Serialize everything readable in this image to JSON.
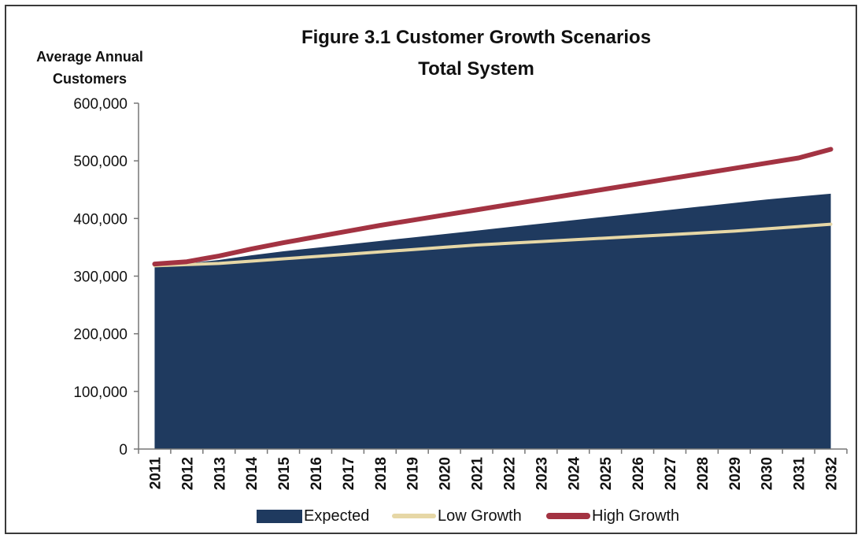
{
  "chart_data": {
    "type": "area",
    "title": "Figure 3.1 Customer Growth Scenarios",
    "subtitle": "Total System",
    "ylabel_line1": "Average Annual",
    "ylabel_line2": "Customers",
    "xlabel": "",
    "categories": [
      "2011",
      "2012",
      "2013",
      "2014",
      "2015",
      "2016",
      "2017",
      "2018",
      "2019",
      "2020",
      "2021",
      "2022",
      "2023",
      "2024",
      "2025",
      "2026",
      "2027",
      "2028",
      "2029",
      "2030",
      "2031",
      "2032"
    ],
    "ylim": [
      0,
      600000
    ],
    "yticks": [
      0,
      100000,
      200000,
      300000,
      400000,
      500000,
      600000
    ],
    "ytick_labels": [
      "0",
      "100,000",
      "200,000",
      "300,000",
      "400,000",
      "500,000",
      "600,000"
    ],
    "grid": false,
    "legend_position": "bottom",
    "series": [
      {
        "name": "Expected",
        "kind": "area",
        "color": "#1f3a5f",
        "values": [
          318000,
          322000,
          328000,
          336000,
          343000,
          349000,
          355000,
          361000,
          367000,
          373000,
          379000,
          385000,
          391000,
          397000,
          403000,
          409000,
          415000,
          421000,
          427000,
          433000,
          438000,
          443000
        ]
      },
      {
        "name": "Low Growth",
        "kind": "line",
        "color": "#e6d7a6",
        "values": [
          318000,
          320000,
          322000,
          326000,
          330000,
          334000,
          338000,
          342000,
          346000,
          350000,
          354000,
          357000,
          360000,
          363000,
          366000,
          369000,
          372000,
          375000,
          378000,
          382000,
          386000,
          390000
        ]
      },
      {
        "name": "High Growth",
        "kind": "line",
        "color": "#a33342",
        "values": [
          321000,
          325000,
          335000,
          347000,
          358000,
          368000,
          378000,
          388000,
          397000,
          406000,
          415000,
          424000,
          433000,
          442000,
          451000,
          460000,
          469000,
          478000,
          487000,
          496000,
          505000,
          520000
        ]
      }
    ]
  }
}
